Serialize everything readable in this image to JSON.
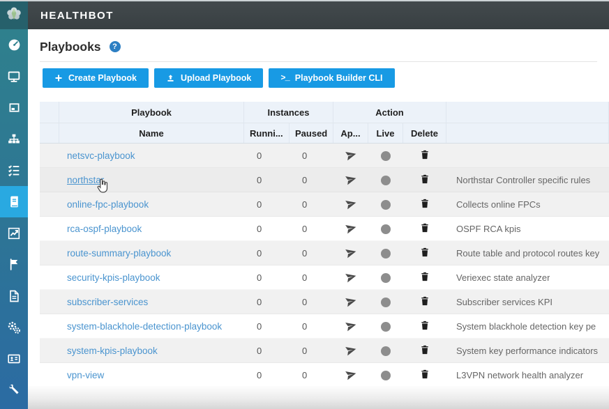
{
  "app": {
    "title": "HEALTHBOT",
    "logo_icon": "healthbot-flower-icon"
  },
  "page": {
    "title": "Playbooks",
    "help_icon": "help-circle-icon"
  },
  "toolbar": {
    "buttons": [
      {
        "id": "create-playbook",
        "label": "Create Playbook",
        "icon": "plus-icon"
      },
      {
        "id": "upload-playbook",
        "label": "Upload Playbook",
        "icon": "upload-icon"
      },
      {
        "id": "playbook-builder-cli",
        "label": "Playbook Builder CLI",
        "icon": "terminal-icon"
      }
    ]
  },
  "sidebar": {
    "items": [
      {
        "name": "dashboard",
        "icon": "gauge-icon",
        "active": false
      },
      {
        "name": "devices",
        "icon": "monitor-icon",
        "active": false
      },
      {
        "name": "device-group",
        "icon": "frame-icon",
        "active": false
      },
      {
        "name": "topology",
        "icon": "sitemap-icon",
        "active": false
      },
      {
        "name": "rules",
        "icon": "checklist-icon",
        "active": false
      },
      {
        "name": "playbooks",
        "icon": "book-icon",
        "active": true
      },
      {
        "name": "charts",
        "icon": "chart-icon",
        "active": false
      },
      {
        "name": "alerts",
        "icon": "flag-icon",
        "active": false
      },
      {
        "name": "reports",
        "icon": "document-icon",
        "active": false
      },
      {
        "name": "settings",
        "icon": "gears-icon",
        "active": false
      },
      {
        "name": "administration",
        "icon": "id-card-icon",
        "active": false
      },
      {
        "name": "tools",
        "icon": "wrench-icon",
        "active": false
      }
    ]
  },
  "table": {
    "group_headers": [
      "Playbook",
      "Instances",
      "Action"
    ],
    "columns": [
      "Name",
      "Runni...",
      "Paused",
      "Ap...",
      "Live",
      "Delete"
    ],
    "action_icons": [
      "apply-send-icon",
      "live-status-icon",
      "delete-trash-icon"
    ],
    "rows": [
      {
        "name": "netsvc-playbook",
        "running": "0",
        "paused": "0",
        "description": "",
        "hovered": false
      },
      {
        "name": "northstar",
        "running": "0",
        "paused": "0",
        "description": "Northstar Controller specific rules",
        "hovered": true
      },
      {
        "name": "online-fpc-playbook",
        "running": "0",
        "paused": "0",
        "description": "Collects online FPCs",
        "hovered": false
      },
      {
        "name": "rca-ospf-playbook",
        "running": "0",
        "paused": "0",
        "description": "OSPF RCA kpis",
        "hovered": false
      },
      {
        "name": "route-summary-playbook",
        "running": "0",
        "paused": "0",
        "description": "Route table and protocol routes key",
        "hovered": false
      },
      {
        "name": "security-kpis-playbook",
        "running": "0",
        "paused": "0",
        "description": "Veriexec state analyzer",
        "hovered": false
      },
      {
        "name": "subscriber-services",
        "running": "0",
        "paused": "0",
        "description": "Subscriber services KPI",
        "hovered": false
      },
      {
        "name": "system-blackhole-detection-playbook",
        "running": "0",
        "paused": "0",
        "description": "System blackhole detection key pe",
        "hovered": false
      },
      {
        "name": "system-kpis-playbook",
        "running": "0",
        "paused": "0",
        "description": "System key performance indicators",
        "hovered": false
      },
      {
        "name": "vpn-view",
        "running": "0",
        "paused": "0",
        "description": "L3VPN network health analyzer",
        "hovered": false
      }
    ]
  },
  "colors": {
    "accent_blue": "#189ae4",
    "active_sidebar": "#29a9e1",
    "header_bar": "#3b4245",
    "sidebar_top": "#2f808d",
    "sidebar_bottom": "#2b6ba3",
    "link": "#4a94cf",
    "table_header_bg": "#ecf2f9",
    "row_stripe": "#f1f1f1",
    "live_dot": "#8d8d8d"
  }
}
